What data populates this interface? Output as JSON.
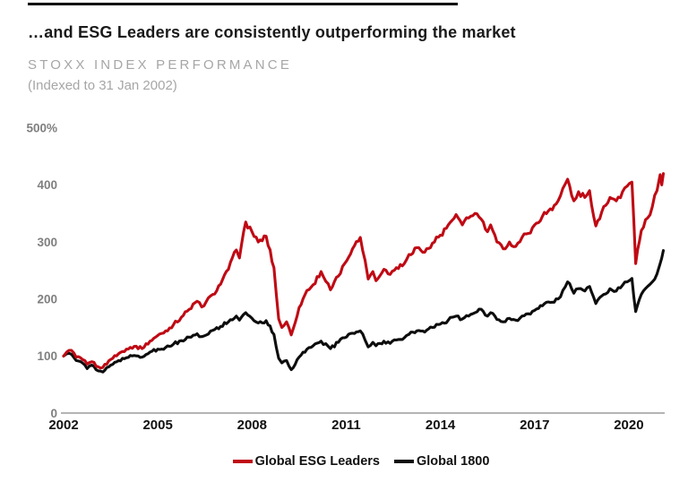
{
  "slide": {
    "title": "…and ESG Leaders are consistently outperforming the market"
  },
  "chart_data": {
    "type": "line",
    "title": "STOXX INDEX PERFORMANCE",
    "subtitle": "(Indexed to 31 Jan 2002)",
    "grid": false,
    "legend_position": "bottom-center",
    "x_axis": {
      "range": [
        2002,
        2021.2
      ],
      "ticks": [
        2002,
        2005,
        2008,
        2011,
        2014,
        2017,
        2020
      ]
    },
    "y_axis": {
      "range": [
        0,
        500
      ],
      "tick_values": [
        500,
        400,
        300,
        200,
        100,
        0
      ],
      "tick_labels": [
        "500%",
        "400",
        "300",
        "200",
        "100",
        "0"
      ]
    },
    "series": [
      {
        "name": "Global ESG Leaders",
        "color": "#bf0a14",
        "points": [
          [
            2002.0,
            100
          ],
          [
            2002.1,
            107
          ],
          [
            2002.25,
            110
          ],
          [
            2002.4,
            98
          ],
          [
            2002.6,
            94
          ],
          [
            2002.75,
            86
          ],
          [
            2002.9,
            90
          ],
          [
            2003.1,
            81
          ],
          [
            2003.25,
            80
          ],
          [
            2003.5,
            94
          ],
          [
            2003.75,
            104
          ],
          [
            2004.0,
            112
          ],
          [
            2004.25,
            117
          ],
          [
            2004.5,
            113
          ],
          [
            2004.75,
            126
          ],
          [
            2005.0,
            136
          ],
          [
            2005.25,
            144
          ],
          [
            2005.5,
            155
          ],
          [
            2005.75,
            168
          ],
          [
            2006.0,
            182
          ],
          [
            2006.25,
            196
          ],
          [
            2006.4,
            186
          ],
          [
            2006.75,
            208
          ],
          [
            2007.0,
            226
          ],
          [
            2007.25,
            252
          ],
          [
            2007.5,
            286
          ],
          [
            2007.6,
            272
          ],
          [
            2007.8,
            335
          ],
          [
            2008.0,
            318
          ],
          [
            2008.2,
            300
          ],
          [
            2008.45,
            310
          ],
          [
            2008.7,
            255
          ],
          [
            2008.85,
            165
          ],
          [
            2008.95,
            150
          ],
          [
            2009.1,
            160
          ],
          [
            2009.25,
            137
          ],
          [
            2009.5,
            185
          ],
          [
            2009.75,
            215
          ],
          [
            2009.95,
            225
          ],
          [
            2010.2,
            248
          ],
          [
            2010.5,
            216
          ],
          [
            2010.75,
            240
          ],
          [
            2010.95,
            262
          ],
          [
            2011.2,
            288
          ],
          [
            2011.45,
            308
          ],
          [
            2011.6,
            268
          ],
          [
            2011.7,
            235
          ],
          [
            2011.85,
            248
          ],
          [
            2011.95,
            232
          ],
          [
            2012.2,
            252
          ],
          [
            2012.4,
            243
          ],
          [
            2012.6,
            255
          ],
          [
            2012.85,
            262
          ],
          [
            2013.0,
            278
          ],
          [
            2013.25,
            290
          ],
          [
            2013.5,
            282
          ],
          [
            2013.75,
            298
          ],
          [
            2014.0,
            312
          ],
          [
            2014.25,
            330
          ],
          [
            2014.5,
            348
          ],
          [
            2014.7,
            330
          ],
          [
            2014.9,
            342
          ],
          [
            2015.1,
            350
          ],
          [
            2015.3,
            340
          ],
          [
            2015.5,
            318
          ],
          [
            2015.6,
            330
          ],
          [
            2015.8,
            300
          ],
          [
            2016.0,
            288
          ],
          [
            2016.2,
            300
          ],
          [
            2016.4,
            292
          ],
          [
            2016.6,
            308
          ],
          [
            2016.8,
            315
          ],
          [
            2017.0,
            330
          ],
          [
            2017.25,
            345
          ],
          [
            2017.5,
            358
          ],
          [
            2017.75,
            372
          ],
          [
            2018.05,
            410
          ],
          [
            2018.25,
            372
          ],
          [
            2018.4,
            388
          ],
          [
            2018.6,
            378
          ],
          [
            2018.75,
            390
          ],
          [
            2018.95,
            328
          ],
          [
            2019.2,
            362
          ],
          [
            2019.4,
            378
          ],
          [
            2019.6,
            372
          ],
          [
            2019.8,
            388
          ],
          [
            2019.95,
            398
          ],
          [
            2020.1,
            405
          ],
          [
            2020.22,
            262
          ],
          [
            2020.4,
            320
          ],
          [
            2020.6,
            342
          ],
          [
            2020.75,
            362
          ],
          [
            2020.9,
            390
          ],
          [
            2021.0,
            418
          ],
          [
            2021.05,
            400
          ],
          [
            2021.1,
            420
          ]
        ]
      },
      {
        "name": "Global 1800",
        "color": "#0d0d0d",
        "points": [
          [
            2002.0,
            100
          ],
          [
            2002.1,
            104
          ],
          [
            2002.25,
            103
          ],
          [
            2002.4,
            92
          ],
          [
            2002.6,
            88
          ],
          [
            2002.75,
            78
          ],
          [
            2002.9,
            84
          ],
          [
            2003.1,
            74
          ],
          [
            2003.25,
            72
          ],
          [
            2003.5,
            84
          ],
          [
            2003.75,
            92
          ],
          [
            2004.0,
            97
          ],
          [
            2004.25,
            101
          ],
          [
            2004.5,
            98
          ],
          [
            2004.75,
            107
          ],
          [
            2005.0,
            112
          ],
          [
            2005.25,
            115
          ],
          [
            2005.5,
            121
          ],
          [
            2005.75,
            127
          ],
          [
            2006.0,
            133
          ],
          [
            2006.25,
            139
          ],
          [
            2006.4,
            134
          ],
          [
            2006.75,
            145
          ],
          [
            2007.0,
            152
          ],
          [
            2007.25,
            160
          ],
          [
            2007.5,
            170
          ],
          [
            2007.6,
            163
          ],
          [
            2007.8,
            176
          ],
          [
            2008.0,
            166
          ],
          [
            2008.2,
            158
          ],
          [
            2008.45,
            162
          ],
          [
            2008.7,
            138
          ],
          [
            2008.85,
            96
          ],
          [
            2008.95,
            88
          ],
          [
            2009.1,
            92
          ],
          [
            2009.25,
            76
          ],
          [
            2009.5,
            98
          ],
          [
            2009.75,
            112
          ],
          [
            2009.95,
            118
          ],
          [
            2010.2,
            126
          ],
          [
            2010.5,
            113
          ],
          [
            2010.75,
            124
          ],
          [
            2010.95,
            132
          ],
          [
            2011.2,
            140
          ],
          [
            2011.45,
            144
          ],
          [
            2011.6,
            128
          ],
          [
            2011.7,
            116
          ],
          [
            2011.85,
            124
          ],
          [
            2011.95,
            118
          ],
          [
            2012.2,
            126
          ],
          [
            2012.4,
            122
          ],
          [
            2012.6,
            128
          ],
          [
            2012.85,
            132
          ],
          [
            2013.0,
            138
          ],
          [
            2013.25,
            144
          ],
          [
            2013.5,
            142
          ],
          [
            2013.75,
            150
          ],
          [
            2014.0,
            156
          ],
          [
            2014.25,
            163
          ],
          [
            2014.5,
            170
          ],
          [
            2014.7,
            165
          ],
          [
            2014.9,
            170
          ],
          [
            2015.1,
            176
          ],
          [
            2015.3,
            182
          ],
          [
            2015.5,
            170
          ],
          [
            2015.6,
            176
          ],
          [
            2015.8,
            164
          ],
          [
            2016.0,
            160
          ],
          [
            2016.2,
            166
          ],
          [
            2016.4,
            163
          ],
          [
            2016.6,
            170
          ],
          [
            2016.8,
            174
          ],
          [
            2017.0,
            180
          ],
          [
            2017.25,
            188
          ],
          [
            2017.5,
            194
          ],
          [
            2017.75,
            200
          ],
          [
            2018.05,
            230
          ],
          [
            2018.25,
            210
          ],
          [
            2018.4,
            218
          ],
          [
            2018.6,
            214
          ],
          [
            2018.75,
            222
          ],
          [
            2018.95,
            192
          ],
          [
            2019.2,
            208
          ],
          [
            2019.4,
            218
          ],
          [
            2019.6,
            214
          ],
          [
            2019.8,
            224
          ],
          [
            2019.95,
            230
          ],
          [
            2020.1,
            236
          ],
          [
            2020.22,
            178
          ],
          [
            2020.4,
            208
          ],
          [
            2020.6,
            222
          ],
          [
            2020.75,
            230
          ],
          [
            2020.9,
            244
          ],
          [
            2021.0,
            262
          ],
          [
            2021.05,
            272
          ],
          [
            2021.1,
            285
          ]
        ]
      }
    ]
  },
  "colors": {
    "accent_red": "#bf0a14",
    "series_black": "#0d0d0d",
    "axis_line": "#9b9b9b",
    "muted_text": "#a6a6a6",
    "tick_text": "#7f7f7f",
    "title_text": "#1a1a1a"
  }
}
